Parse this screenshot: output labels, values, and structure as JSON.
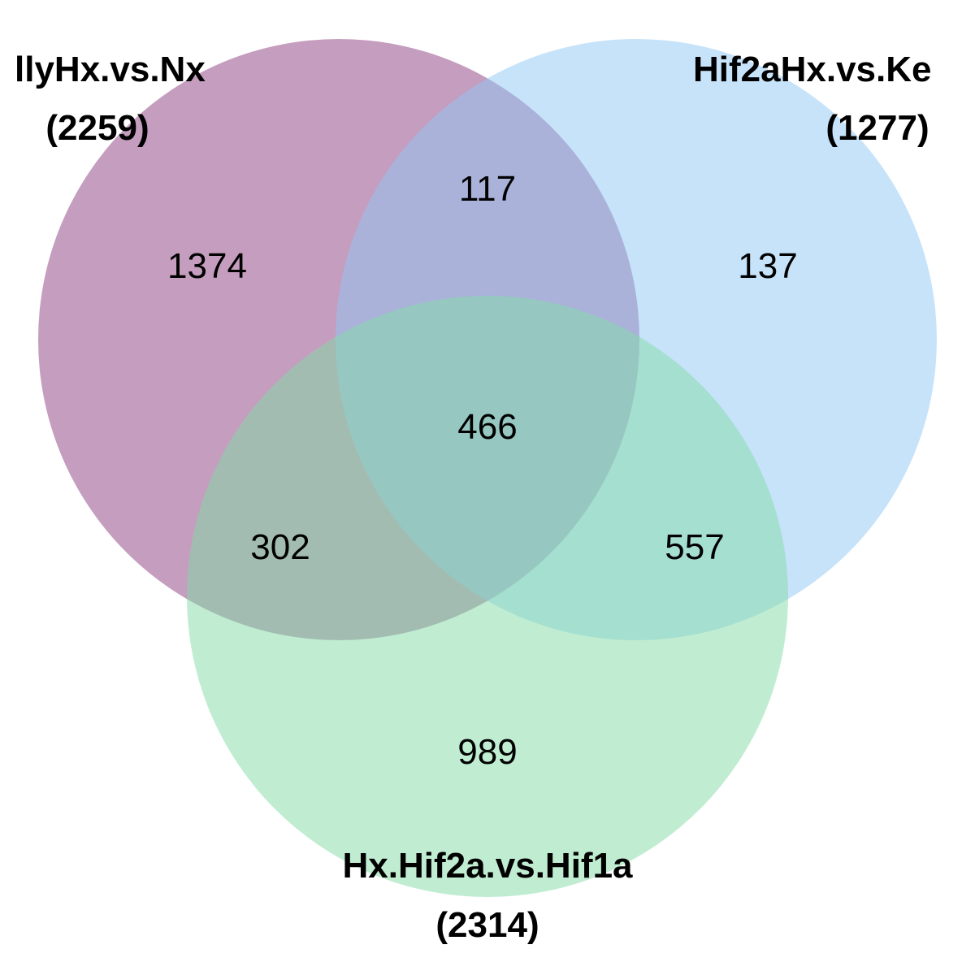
{
  "diagram": {
    "type": "venn-3",
    "sets": [
      {
        "key": "A",
        "name": "llyHx.vs.Nx",
        "total": "(2259)",
        "color": "#8b3b7e"
      },
      {
        "key": "B",
        "name": "Hif2aHx.vs.Ke",
        "total": "(1277)",
        "color": "#90c8f5"
      },
      {
        "key": "C",
        "name": "Hx.Hif2a.vs.Hif1a",
        "total": "(2314)",
        "color": "#82dca5"
      }
    ],
    "regions": {
      "a_only": "1374",
      "b_only": "137",
      "c_only": "989",
      "ab": "117",
      "ac": "302",
      "bc": "557",
      "abc": "466"
    }
  }
}
